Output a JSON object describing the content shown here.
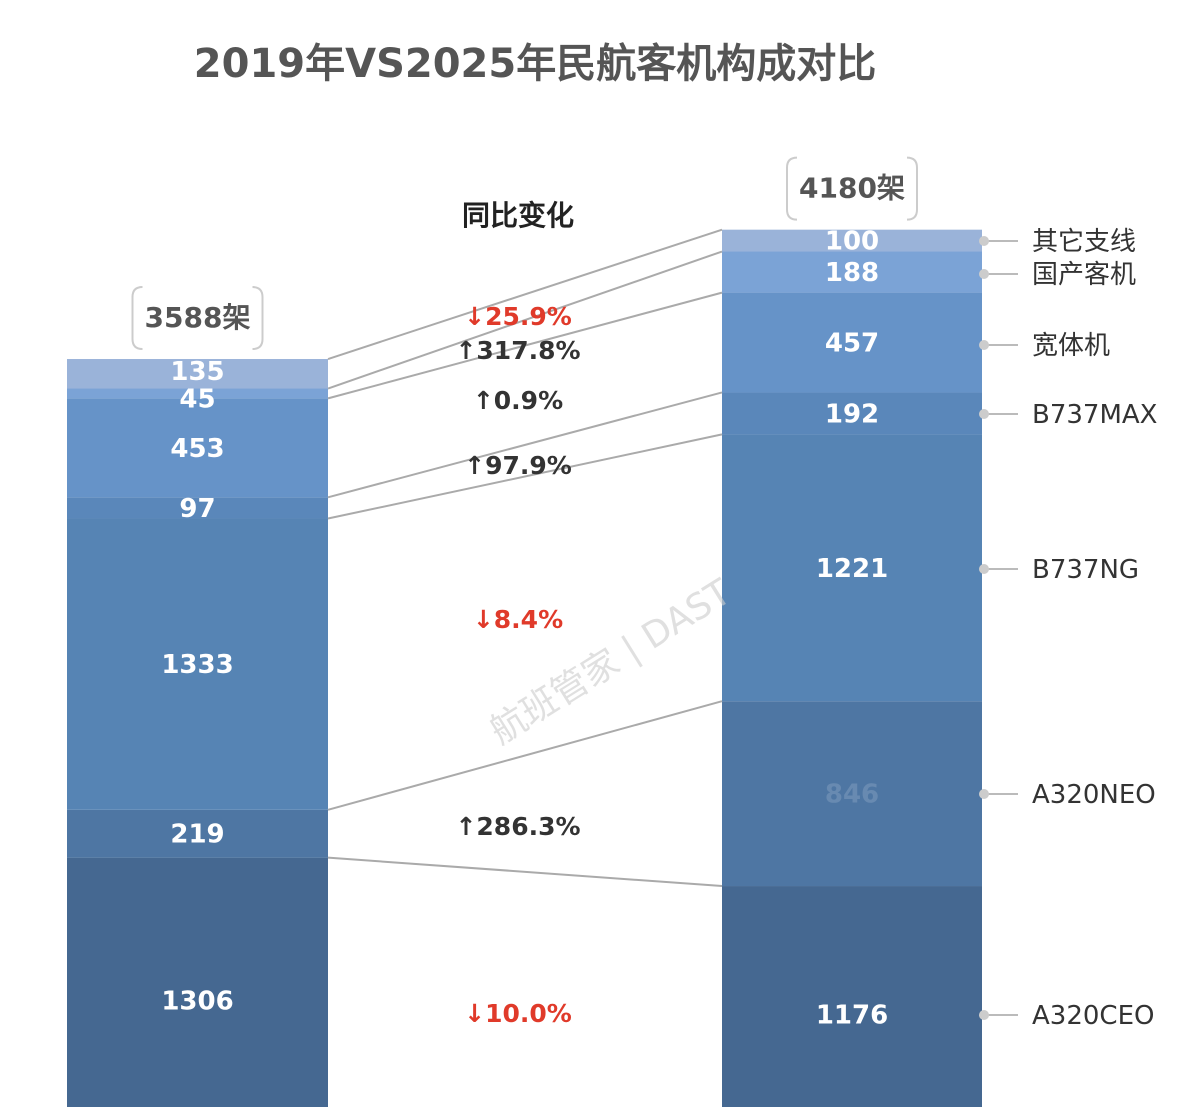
{
  "chart_data": {
    "type": "bar",
    "stacked": true,
    "title": "2019年VS2025年民航客机构成对比",
    "subtitle": "同比变化",
    "categories": [
      "A320CEO",
      "A320NEO",
      "B737NG",
      "B737MAX",
      "宽体机",
      "国产客机",
      "其它支线"
    ],
    "series": [
      {
        "name": "2019",
        "total_label": "3588架",
        "values": [
          1306,
          219,
          1333,
          97,
          453,
          45,
          135
        ]
      },
      {
        "name": "2025",
        "total_label": "4180架",
        "values": [
          1176,
          846,
          1221,
          192,
          457,
          188,
          100
        ]
      }
    ],
    "changes": [
      "↓10.0%",
      "↑286.3%",
      "↓8.4%",
      "↑97.9%",
      "↑0.9%",
      "↑317.8%",
      "↓25.9%"
    ],
    "change_direction": [
      "down",
      "up",
      "down",
      "up",
      "up",
      "up",
      "down"
    ],
    "colors": [
      "#456891",
      "#4e76a3",
      "#5684b4",
      "#5a87ba",
      "#6693c8",
      "#7ba3d6",
      "#9ab3d9"
    ],
    "up_color": "#333333",
    "down_color": "#e03a2a",
    "watermark": "航班管家 | DAST",
    "legend": "right"
  }
}
